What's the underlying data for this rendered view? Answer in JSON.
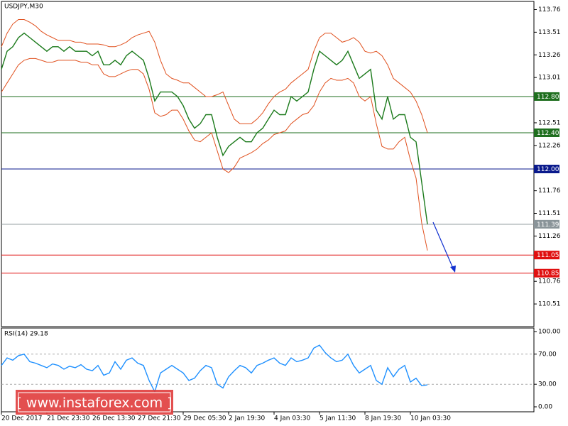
{
  "chart_data": [
    {
      "type": "line",
      "title": "USDJPY,M30",
      "annotation": "[ www.instaforex.com ]",
      "ylim": [
        110.26,
        113.85
      ],
      "yticks": [
        113.76,
        113.51,
        113.26,
        113.01,
        112.51,
        112.26,
        111.76,
        111.51,
        111.26,
        110.76,
        110.51
      ],
      "levels": [
        {
          "value": 112.8,
          "label": "112.80",
          "color": "#1e6e1e"
        },
        {
          "value": 112.4,
          "label": "112.40",
          "color": "#1e6e1e"
        },
        {
          "value": 112,
          "label": "112.00",
          "color": "#0a1a8c"
        },
        {
          "value": 111.39,
          "label": "111.39",
          "color": "#8a9499"
        },
        {
          "value": 111.05,
          "label": "111.05",
          "color": "#e01010"
        },
        {
          "value": 110.85,
          "label": "110.85",
          "color": "#e01010"
        }
      ],
      "series": [
        {
          "name": "Close",
          "color": "#1b7a1b",
          "values": [
            113.1,
            113.3,
            113.35,
            113.45,
            113.5,
            113.45,
            113.4,
            113.35,
            113.3,
            113.35,
            113.35,
            113.3,
            113.35,
            113.3,
            113.3,
            113.3,
            113.25,
            113.3,
            113.15,
            113.15,
            113.2,
            113.15,
            113.25,
            113.3,
            113.25,
            113.2,
            113.0,
            112.75,
            112.85,
            112.85,
            112.85,
            112.8,
            112.7,
            112.55,
            112.45,
            112.5,
            112.6,
            112.6,
            112.35,
            112.15,
            112.25,
            112.3,
            112.35,
            112.3,
            112.3,
            112.4,
            112.45,
            112.55,
            112.65,
            112.6,
            112.6,
            112.8,
            112.75,
            112.8,
            112.85,
            113.1,
            113.3,
            113.25,
            113.2,
            113.15,
            113.2,
            113.3,
            113.15,
            113.0,
            113.05,
            113.1,
            112.65,
            112.55,
            112.8,
            112.55,
            112.6,
            112.6,
            112.35,
            112.3,
            111.85,
            111.39
          ]
        },
        {
          "name": "Upper band",
          "color": "#e0501e",
          "values": [
            113.35,
            113.5,
            113.6,
            113.65,
            113.65,
            113.62,
            113.58,
            113.52,
            113.48,
            113.45,
            113.42,
            113.42,
            113.42,
            113.4,
            113.4,
            113.38,
            113.38,
            113.38,
            113.37,
            113.35,
            113.35,
            113.37,
            113.4,
            113.45,
            113.48,
            113.5,
            113.52,
            113.4,
            113.2,
            113.05,
            113.0,
            112.98,
            112.95,
            112.95,
            112.9,
            112.85,
            112.8,
            112.8,
            112.82,
            112.85,
            112.7,
            112.55,
            112.5,
            112.5,
            112.5,
            112.55,
            112.62,
            112.72,
            112.8,
            112.85,
            112.88,
            112.95,
            113.0,
            113.05,
            113.1,
            113.3,
            113.45,
            113.5,
            113.5,
            113.45,
            113.4,
            113.42,
            113.45,
            113.4,
            113.3,
            113.28,
            113.3,
            113.25,
            113.15,
            113.0,
            112.95,
            112.9,
            112.85,
            112.75,
            112.6,
            112.4
          ]
        },
        {
          "name": "Lower band",
          "color": "#e0501e",
          "values": [
            112.85,
            112.95,
            113.05,
            113.15,
            113.2,
            113.22,
            113.22,
            113.2,
            113.18,
            113.18,
            113.2,
            113.2,
            113.2,
            113.2,
            113.18,
            113.18,
            113.15,
            113.15,
            113.05,
            113.02,
            113.02,
            113.05,
            113.08,
            113.1,
            113.1,
            113.05,
            112.88,
            112.62,
            112.58,
            112.6,
            112.65,
            112.65,
            112.55,
            112.42,
            112.32,
            112.3,
            112.35,
            112.4,
            112.2,
            112.0,
            111.96,
            112.02,
            112.12,
            112.15,
            112.18,
            112.22,
            112.28,
            112.32,
            112.38,
            112.4,
            112.42,
            112.5,
            112.55,
            112.6,
            112.62,
            112.7,
            112.85,
            112.95,
            113.0,
            112.98,
            112.98,
            113.0,
            112.95,
            112.8,
            112.75,
            112.8,
            112.5,
            112.25,
            112.22,
            112.22,
            112.3,
            112.35,
            112.1,
            111.9,
            111.4,
            111.1
          ]
        }
      ]
    },
    {
      "type": "line",
      "title": "RSI(14) 29.18",
      "categories": [
        "20 Dec 2017",
        null,
        null,
        null,
        null,
        null,
        null,
        null,
        "21 Dec 23:30",
        null,
        null,
        null,
        null,
        null,
        null,
        null,
        "26 Dec 13:30",
        null,
        null,
        null,
        null,
        null,
        null,
        null,
        "27 Dec 21:30",
        null,
        null,
        null,
        null,
        null,
        null,
        null,
        "29 Dec 05:30",
        null,
        null,
        null,
        null,
        null,
        null,
        null,
        "2 Jan 19:30",
        null,
        null,
        null,
        null,
        null,
        null,
        null,
        "4 Jan 03:30",
        null,
        null,
        null,
        null,
        null,
        null,
        null,
        "5 Jan 11:30",
        null,
        null,
        null,
        null,
        null,
        null,
        null,
        "8 Jan 19:30",
        null,
        null,
        null,
        null,
        null,
        null,
        null,
        "10 Jan 03:30",
        null,
        null,
        null
      ],
      "ylim": [
        -6.6,
        104.7
      ],
      "yticks": [
        {
          "value": 100,
          "label": "100.00"
        },
        {
          "value": 70,
          "label": "70.00"
        },
        {
          "value": 30,
          "label": "30.00"
        },
        {
          "value": 0,
          "label": "0.00"
        }
      ],
      "grid": true,
      "series": [
        {
          "name": "RSI(14)",
          "color": "#1e90ff",
          "values": [
            55,
            65,
            62,
            68,
            70,
            60,
            58,
            55,
            52,
            57,
            55,
            50,
            54,
            52,
            56,
            50,
            48,
            55,
            42,
            45,
            60,
            50,
            62,
            65,
            58,
            55,
            35,
            20,
            45,
            50,
            55,
            50,
            45,
            35,
            38,
            48,
            55,
            52,
            30,
            25,
            40,
            48,
            55,
            52,
            45,
            55,
            58,
            62,
            65,
            58,
            55,
            65,
            60,
            62,
            65,
            78,
            82,
            72,
            65,
            60,
            62,
            70,
            55,
            45,
            50,
            55,
            35,
            30,
            52,
            40,
            50,
            55,
            33,
            38,
            28,
            29.18
          ]
        }
      ]
    }
  ]
}
